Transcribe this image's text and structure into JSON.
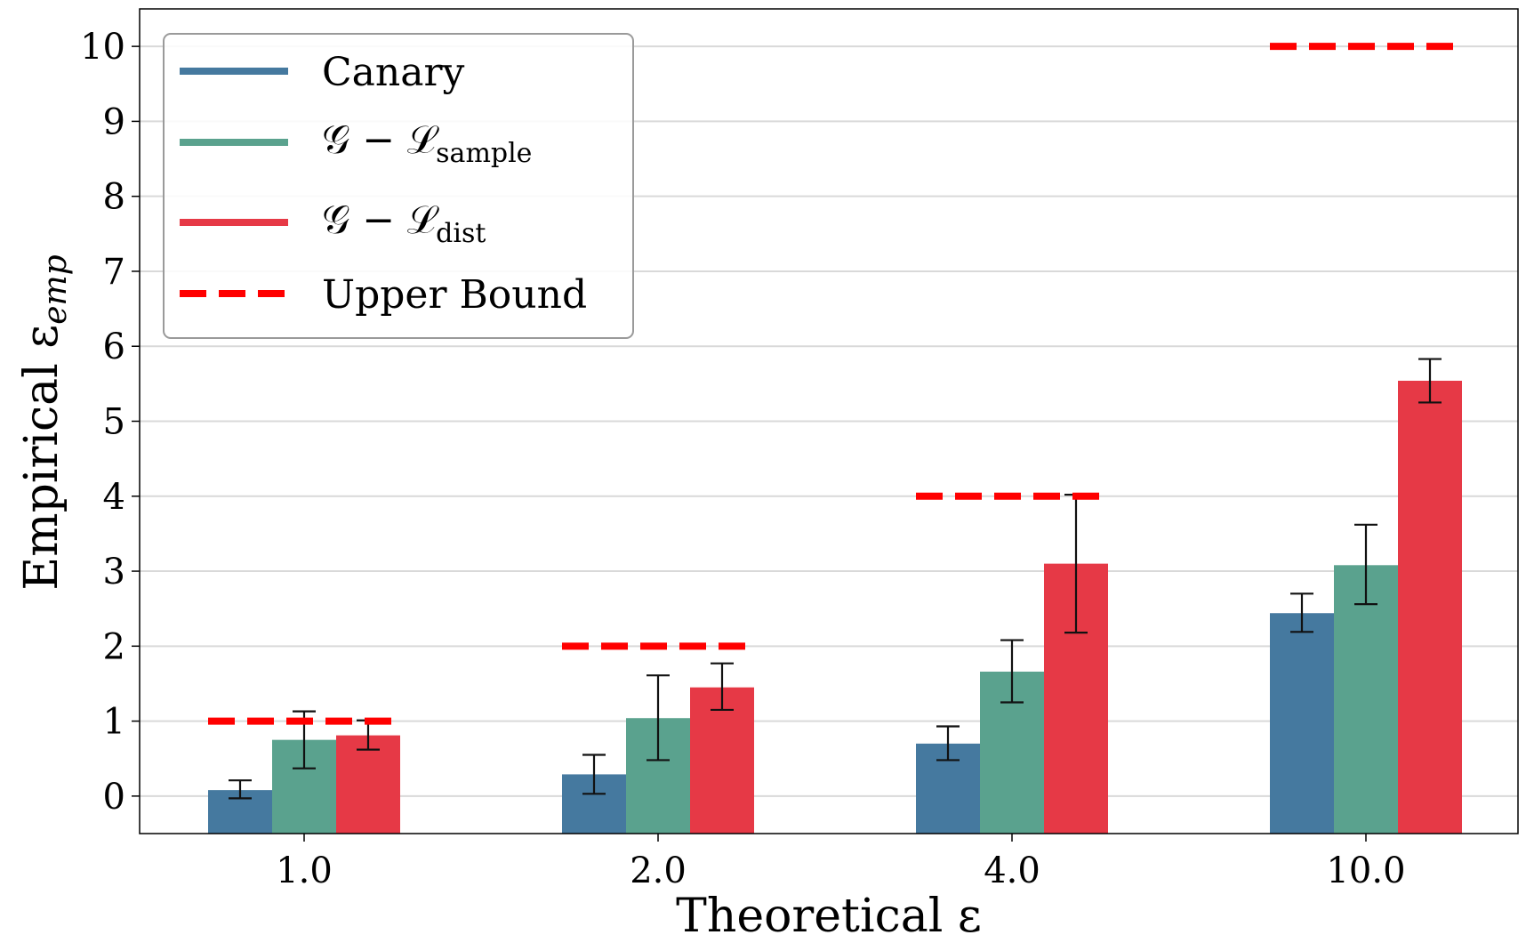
{
  "chart_data": {
    "type": "bar",
    "xlabel": "Theoretical ε",
    "ylabel_main": "Empirical ε",
    "ylabel_sub": "emp",
    "ylim": [
      -0.5,
      10.5
    ],
    "yticks": [
      0,
      1,
      2,
      3,
      4,
      5,
      6,
      7,
      8,
      9,
      10
    ],
    "grid": "horizontal",
    "legend_placement": "top-left",
    "categories": [
      "1.0",
      "2.0",
      "4.0",
      "10.0"
    ],
    "series": [
      {
        "name": "Canary",
        "color": "#45799f",
        "values": [
          0.08,
          0.29,
          0.7,
          2.44
        ],
        "err_low": [
          -0.03,
          0.03,
          0.48,
          2.19
        ],
        "err_high": [
          0.21,
          0.55,
          0.93,
          2.7
        ]
      },
      {
        "name_main": "𝒢 − ℒ",
        "name_sub": "sample",
        "color": "#5aa28e",
        "values": [
          0.75,
          1.04,
          1.66,
          3.08
        ],
        "err_low": [
          0.37,
          0.48,
          1.25,
          2.56
        ],
        "err_high": [
          1.13,
          1.61,
          2.08,
          3.62
        ]
      },
      {
        "name_main": "𝒢 − ℒ",
        "name_sub": "dist",
        "color": "#e63946",
        "values": [
          0.81,
          1.45,
          3.1,
          5.54
        ],
        "err_low": [
          0.62,
          1.15,
          2.18,
          5.25
        ],
        "err_high": [
          1.01,
          1.77,
          4.02,
          5.83
        ]
      }
    ],
    "upper_bound": {
      "name": "Upper Bound",
      "color": "#ff0000",
      "values": [
        1,
        2,
        4,
        10
      ]
    }
  }
}
